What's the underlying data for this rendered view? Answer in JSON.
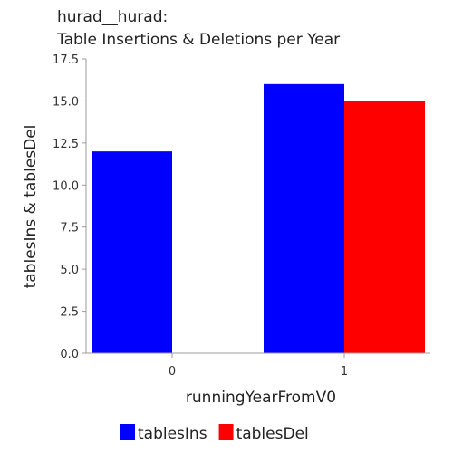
{
  "chart_data": {
    "type": "bar",
    "title_lines": [
      "hurad__hurad:",
      "Table Insertions & Deletions per Year"
    ],
    "xlabel": "runningYearFromV0",
    "ylabel": "tablesIns & tablesDel",
    "categories": [
      "0",
      "1"
    ],
    "series": [
      {
        "name": "tablesIns",
        "color": "#0000ff",
        "values": [
          12,
          16
        ]
      },
      {
        "name": "tablesDel",
        "color": "#ff0000",
        "values": [
          0,
          15
        ]
      }
    ],
    "ylim": [
      0,
      17.5
    ],
    "yticks": [
      0,
      2.5,
      5,
      7.5,
      10,
      12.5,
      15,
      17.5
    ],
    "ytick_labels": [
      "0.0",
      "2.5",
      "5.0",
      "7.5",
      "10.0",
      "12.5",
      "15.0",
      "17.5"
    ],
    "grid": false,
    "legend_position": "bottom"
  }
}
